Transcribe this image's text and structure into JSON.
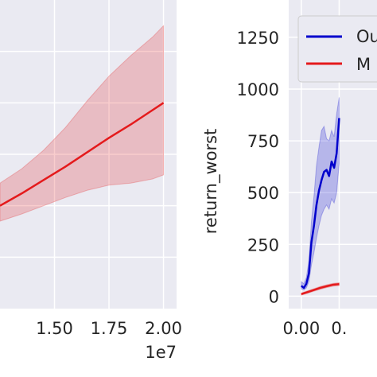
{
  "chart_data": [
    {
      "type": "line",
      "title": "",
      "xlabel": "",
      "ylabel": "",
      "x_multiplier_label": "1e7",
      "xlim": [
        1.25,
        2.06
      ],
      "ylim": [
        0,
        30
      ],
      "x_ticks": [
        "1.50",
        "1.75",
        "2.00"
      ],
      "x_tick_values": [
        1.5,
        1.75,
        2.0
      ],
      "grid": true,
      "series": [
        {
          "color": "#e41a1c",
          "x": [
            1.25,
            1.35,
            1.45,
            1.55,
            1.65,
            1.75,
            1.85,
            1.95,
            2.0
          ],
          "y": [
            10,
            11.2,
            12.5,
            13.8,
            15.2,
            16.6,
            17.9,
            19.3,
            20.0
          ],
          "lower": [
            8.5,
            9.2,
            10.0,
            10.8,
            11.5,
            12.0,
            12.2,
            12.6,
            13.0
          ],
          "upper": [
            12.2,
            13.6,
            15.4,
            17.6,
            20.2,
            22.6,
            24.6,
            26.4,
            27.5
          ]
        }
      ]
    },
    {
      "type": "line",
      "title": "",
      "xlabel": "",
      "ylabel": "return_worst",
      "xlim": [
        -0.1,
        0.6
      ],
      "ylim": [
        -60,
        1430
      ],
      "x_ticks": [
        "0.00",
        "0."
      ],
      "x_tick_values": [
        0.0,
        0.3
      ],
      "y_ticks": [
        "0",
        "250",
        "500",
        "750",
        "1000",
        "1250"
      ],
      "y_tick_values": [
        0,
        250,
        500,
        750,
        1000,
        1250
      ],
      "grid": true,
      "legend": {
        "placement": "top-right",
        "entries": [
          "Ou",
          "M"
        ]
      },
      "series": [
        {
          "color": "#0000cc",
          "x": [
            0.0,
            0.02,
            0.04,
            0.06,
            0.08,
            0.1,
            0.12,
            0.14,
            0.16,
            0.18,
            0.2,
            0.22,
            0.24,
            0.26,
            0.28,
            0.3
          ],
          "y": [
            50,
            40,
            60,
            110,
            260,
            340,
            440,
            510,
            560,
            600,
            610,
            580,
            650,
            620,
            690,
            860
          ],
          "lower": [
            35,
            30,
            40,
            70,
            150,
            210,
            280,
            340,
            390,
            420,
            440,
            420,
            470,
            450,
            500,
            640
          ],
          "upper": [
            70,
            60,
            90,
            170,
            360,
            480,
            630,
            720,
            800,
            820,
            760,
            750,
            800,
            770,
            880,
            960
          ]
        },
        {
          "color": "#e41a1c",
          "x": [
            0.0,
            0.05,
            0.1,
            0.15,
            0.2,
            0.25,
            0.3
          ],
          "y": [
            10,
            20,
            30,
            40,
            48,
            55,
            58
          ],
          "lower": [
            5,
            14,
            24,
            33,
            41,
            48,
            51
          ],
          "upper": [
            15,
            26,
            36,
            47,
            55,
            62,
            65
          ]
        }
      ]
    }
  ]
}
